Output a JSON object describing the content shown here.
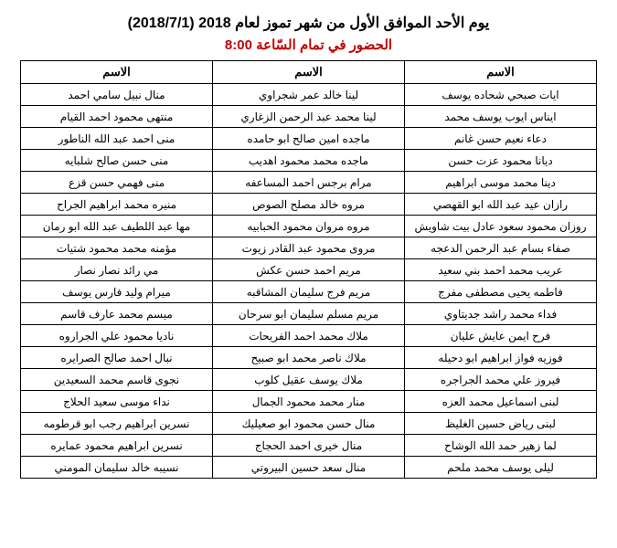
{
  "header": {
    "title": "يوم الأحد الموافق الأول من شهر تموز لعام 2018 (2018/7/1)",
    "subtitle": "الحضور في تمام السّاعة 8:00"
  },
  "table": {
    "column_header": "الاسم",
    "rows": [
      [
        "ايات صبحي شحاده يوسف",
        "لينا خالد عمر شجراوي",
        "منال نبيل سامي احمد"
      ],
      [
        "ايناس ايوب يوسف محمد",
        "لينا محمد عبد الرحمن الزغاري",
        "منتهى محمود احمد القيام"
      ],
      [
        "دعاء نعيم حسن غانم",
        "ماجده امين صالح ابو حامده",
        "منى احمد عبد الله الناطور"
      ],
      [
        "ديانا محمود عزت حسن",
        "ماجده محمد محمود اهديب",
        "منى حسن صالح شلبايه"
      ],
      [
        "دينا محمد موسى ابراهيم",
        "مرام برجس احمد المساعفه",
        "منى فهمي حسن قزع"
      ],
      [
        "رازان عيد عبد الله ابو القهصي",
        "مروه خالد مصلح الصوص",
        "منيره محمد ابراهيم الجراح"
      ],
      [
        "روزان محمود سعود عادل بيت شاويش",
        "مروه مروان محمود الحبابيه",
        "مها عبد اللطيف عبد الله ابو رمان"
      ],
      [
        "صفاء بسام عبد الرحمن الدعجه",
        "مروى محمود عبد القادر زيوت",
        "مؤمنه محمد محمود شتيات"
      ],
      [
        "عريب محمد احمد بني سعيد",
        "مريم احمد حسن عكش",
        "مي رائد نصار نصار"
      ],
      [
        "فاطمه يحيى مصطفى مفرج",
        "مريم فرج سليمان المشاقبه",
        "ميرام وليد فارس يوسف"
      ],
      [
        "فداء محمد راشد جديتاوي",
        "مريم مسلم سليمان ابو سرحان",
        "ميسم محمد عارف قاسم"
      ],
      [
        "فرح ايمن عايش عليان",
        "ملاك محمد احمد الفريحات",
        "ناديا محمود علي الجراروه"
      ],
      [
        "فوزيه فواز ابراهيم ابو دحيله",
        "ملاك ناصر محمد ابو صبيح",
        "نبال احمد صالح الصرايره"
      ],
      [
        "فيروز علي محمد الجراجره",
        "ملاك يوسف عقيل كلوب",
        "نجوى قاسم محمد السعيدين"
      ],
      [
        "لبنى اسماعيل محمد العزه",
        "منار محمد محمود الجمال",
        "نداء موسى سعيد الحلاج"
      ],
      [
        "لبنى رياض حسين الغليظ",
        "منال حسن محمود ابو صعيليك",
        "نسرين ابراهيم رجب ابو قرطومه"
      ],
      [
        "لما زهير حمد الله الوشاح",
        "منال خيرى احمد الحجاج",
        "نسرين ابراهيم محمود عمايره"
      ],
      [
        "ليلى يوسف محمد ملحم",
        "منال سعد حسين البيروتي",
        "نسيبه خالد سليمان المومني"
      ]
    ]
  }
}
